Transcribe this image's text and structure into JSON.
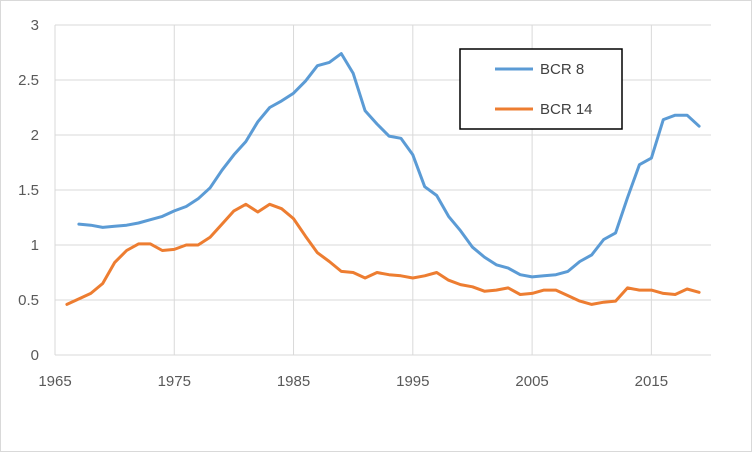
{
  "chart_data": {
    "type": "line",
    "title": "",
    "xlabel": "",
    "ylabel": "",
    "xlim": [
      1965,
      2020
    ],
    "ylim": [
      0,
      3
    ],
    "x_ticks": [
      1965,
      1975,
      1985,
      1995,
      2005,
      2015
    ],
    "y_ticks": [
      0,
      0.5,
      1,
      1.5,
      2,
      2.5,
      3
    ],
    "y_tick_labels": [
      "0",
      "0.5",
      "1",
      "1.5",
      "2",
      "2.5",
      "3"
    ],
    "grid": "vertical and horizontal major gridlines",
    "legend_position": "top-right",
    "series": [
      {
        "name": "BCR 8",
        "color": "#5b9bd5",
        "x": [
          1967,
          1968,
          1969,
          1970,
          1971,
          1972,
          1973,
          1974,
          1975,
          1976,
          1977,
          1978,
          1979,
          1980,
          1981,
          1982,
          1983,
          1984,
          1985,
          1986,
          1987,
          1988,
          1989,
          1990,
          1991,
          1992,
          1993,
          1994,
          1995,
          1996,
          1997,
          1998,
          1999,
          2000,
          2001,
          2002,
          2003,
          2004,
          2005,
          2006,
          2007,
          2008,
          2009,
          2010,
          2011,
          2012,
          2013,
          2014,
          2015,
          2016,
          2017,
          2018,
          2019
        ],
        "values": [
          1.19,
          1.18,
          1.16,
          1.17,
          1.18,
          1.2,
          1.23,
          1.26,
          1.31,
          1.35,
          1.42,
          1.52,
          1.68,
          1.82,
          1.94,
          2.12,
          2.25,
          2.31,
          2.38,
          2.49,
          2.63,
          2.66,
          2.74,
          2.56,
          2.22,
          2.1,
          1.99,
          1.97,
          1.82,
          1.53,
          1.45,
          1.26,
          1.13,
          0.98,
          0.89,
          0.82,
          0.79,
          0.73,
          0.71,
          0.72,
          0.73,
          0.76,
          0.85,
          0.91,
          1.05,
          1.11,
          1.43,
          1.73,
          1.79,
          2.14,
          2.18,
          2.18,
          2.08
        ]
      },
      {
        "name": "BCR 14",
        "color": "#ed7d31",
        "x": [
          1966,
          1967,
          1968,
          1969,
          1970,
          1971,
          1972,
          1973,
          1974,
          1975,
          1976,
          1977,
          1978,
          1979,
          1980,
          1981,
          1982,
          1983,
          1984,
          1985,
          1986,
          1987,
          1988,
          1989,
          1990,
          1991,
          1992,
          1993,
          1994,
          1995,
          1996,
          1997,
          1998,
          1999,
          2000,
          2001,
          2002,
          2003,
          2004,
          2005,
          2006,
          2007,
          2008,
          2009,
          2010,
          2011,
          2012,
          2013,
          2014,
          2015,
          2016,
          2017,
          2018,
          2019
        ],
        "values": [
          0.46,
          0.51,
          0.56,
          0.65,
          0.84,
          0.95,
          1.01,
          1.01,
          0.95,
          0.96,
          1.0,
          1.0,
          1.07,
          1.19,
          1.31,
          1.37,
          1.3,
          1.37,
          1.33,
          1.24,
          1.08,
          0.93,
          0.85,
          0.76,
          0.75,
          0.7,
          0.75,
          0.73,
          0.72,
          0.7,
          0.72,
          0.75,
          0.68,
          0.64,
          0.62,
          0.58,
          0.59,
          0.61,
          0.55,
          0.56,
          0.59,
          0.59,
          0.54,
          0.49,
          0.46,
          0.48,
          0.49,
          0.61,
          0.59,
          0.59,
          0.56,
          0.55,
          0.6,
          0.57
        ]
      }
    ]
  }
}
